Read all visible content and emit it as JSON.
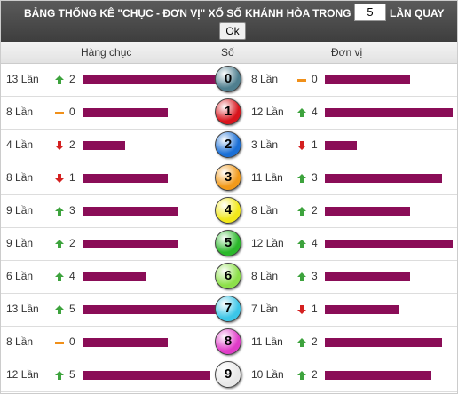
{
  "header": {
    "title_before": "BẢNG THỐNG KÊ \"CHỤC - ĐƠN VỊ\" XỔ SỐ KHÁNH HÒA TRONG",
    "turns": "5",
    "title_after": "LẦN QUAY",
    "button": "Ok"
  },
  "columns": {
    "left": "Hàng chục",
    "middle": "Số",
    "right": "Đơn vị"
  },
  "unit": "Lần",
  "rows": [
    {
      "digit": "0",
      "ball_color": "#4f7f8f",
      "left": {
        "count": 13,
        "trend": "up",
        "change": 2
      },
      "right": {
        "count": 8,
        "trend": "flat",
        "change": 0
      }
    },
    {
      "digit": "1",
      "ball_color": "#d8141c",
      "left": {
        "count": 8,
        "trend": "flat",
        "change": 0
      },
      "right": {
        "count": 12,
        "trend": "up",
        "change": 4
      }
    },
    {
      "digit": "2",
      "ball_color": "#1a6fd6",
      "left": {
        "count": 4,
        "trend": "down",
        "change": 2
      },
      "right": {
        "count": 3,
        "trend": "down",
        "change": 1
      }
    },
    {
      "digit": "3",
      "ball_color": "#f29a1a",
      "left": {
        "count": 8,
        "trend": "down",
        "change": 1
      },
      "right": {
        "count": 11,
        "trend": "up",
        "change": 3
      }
    },
    {
      "digit": "4",
      "ball_color": "#f2e81a",
      "left": {
        "count": 9,
        "trend": "up",
        "change": 3
      },
      "right": {
        "count": 8,
        "trend": "up",
        "change": 2
      }
    },
    {
      "digit": "5",
      "ball_color": "#2bb82b",
      "left": {
        "count": 9,
        "trend": "up",
        "change": 2
      },
      "right": {
        "count": 12,
        "trend": "up",
        "change": 4
      }
    },
    {
      "digit": "6",
      "ball_color": "#8de04a",
      "left": {
        "count": 6,
        "trend": "up",
        "change": 4
      },
      "right": {
        "count": 8,
        "trend": "up",
        "change": 3
      }
    },
    {
      "digit": "7",
      "ball_color": "#3cc6e8",
      "left": {
        "count": 13,
        "trend": "up",
        "change": 5
      },
      "right": {
        "count": 7,
        "trend": "down",
        "change": 1
      }
    },
    {
      "digit": "8",
      "ball_color": "#e03cc8",
      "left": {
        "count": 8,
        "trend": "flat",
        "change": 0
      },
      "right": {
        "count": 11,
        "trend": "up",
        "change": 2
      }
    },
    {
      "digit": "9",
      "ball_color": "#e8e8e8",
      "left": {
        "count": 12,
        "trend": "up",
        "change": 5
      },
      "right": {
        "count": 10,
        "trend": "up",
        "change": 2
      }
    }
  ]
}
